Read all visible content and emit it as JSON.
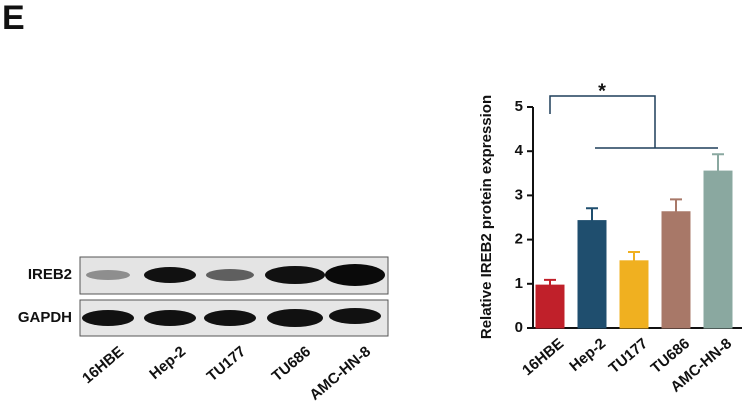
{
  "panel_label": "E",
  "blot": {
    "rows": [
      "IREB2",
      "GAPDH"
    ],
    "lanes": [
      "16HBE",
      "Hep-2",
      "TU177",
      "TU686",
      "AMC-HN-8"
    ]
  },
  "chart_data": {
    "type": "bar",
    "ylabel": "Relative IREB2 protein expression",
    "categories": [
      "16HBE",
      "Hep-2",
      "TU177",
      "TU686",
      "AMC-HN-8"
    ],
    "values": [
      0.97,
      2.43,
      1.52,
      2.63,
      3.55
    ],
    "errors": [
      0.12,
      0.28,
      0.2,
      0.28,
      0.38
    ],
    "colors": [
      "#c0202a",
      "#1f4e6e",
      "#f0b020",
      "#a87868",
      "#8aa8a0"
    ],
    "ylim": [
      0,
      5
    ],
    "yticks": [
      0,
      1,
      2,
      3,
      4,
      5
    ],
    "annotation": "*"
  }
}
